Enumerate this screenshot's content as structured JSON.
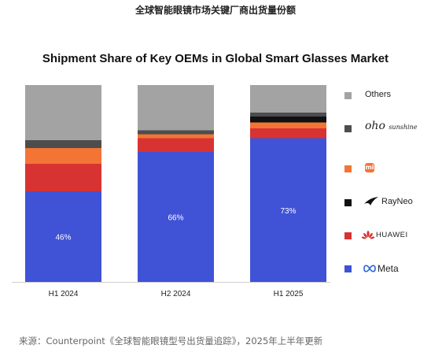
{
  "page_heading": "全球智能眼镜市场关键厂商出货量份额",
  "source_note": "来源：Counterpoint《全球智能眼镜型号出货量追踪》，2025年上半年更新",
  "colors": {
    "Meta": "#4052d6",
    "HUAWEI": "#d73333",
    "Xiaomi": "#f47436",
    "RayNeo": "#111111",
    "oho sunshine": "#4d4d4d",
    "Others": "#a3a3a3"
  },
  "legend": [
    {
      "name": "Others",
      "label": "Others",
      "icon": "square-gray"
    },
    {
      "name": "oho sunshine",
      "label": "oho",
      "sub": "sunshine",
      "icon": "oho-script-logo"
    },
    {
      "name": "Xiaomi",
      "label": "mi",
      "icon": "xiaomi-mi-logo"
    },
    {
      "name": "RayNeo",
      "label": "RayNeo",
      "icon": "rayneo-swoosh-logo"
    },
    {
      "name": "HUAWEI",
      "label": "HUAWEI",
      "icon": "huawei-petal-logo"
    },
    {
      "name": "Meta",
      "label": "Meta",
      "icon": "meta-infinity-logo"
    }
  ],
  "chart_data": {
    "type": "bar",
    "stacked": true,
    "percent_stacked": true,
    "title": "Shipment Share of Key OEMs in Global Smart Glasses Market",
    "xlabel": "",
    "ylabel": "",
    "ylim": [
      0,
      100
    ],
    "categories": [
      "H1 2024",
      "H2 2024",
      "H1 2025"
    ],
    "series": [
      {
        "name": "Meta",
        "values": [
          46,
          66,
          73
        ],
        "labels": [
          "46%",
          "66%",
          "73%"
        ]
      },
      {
        "name": "HUAWEI",
        "values": [
          14,
          7,
          5
        ]
      },
      {
        "name": "Xiaomi",
        "values": [
          8,
          2,
          3
        ]
      },
      {
        "name": "RayNeo",
        "values": [
          0,
          0,
          3
        ]
      },
      {
        "name": "oho sunshine",
        "values": [
          4,
          2,
          2
        ]
      },
      {
        "name": "Others",
        "values": [
          28,
          23,
          14
        ]
      }
    ],
    "legend_position": "right",
    "grid": false
  }
}
